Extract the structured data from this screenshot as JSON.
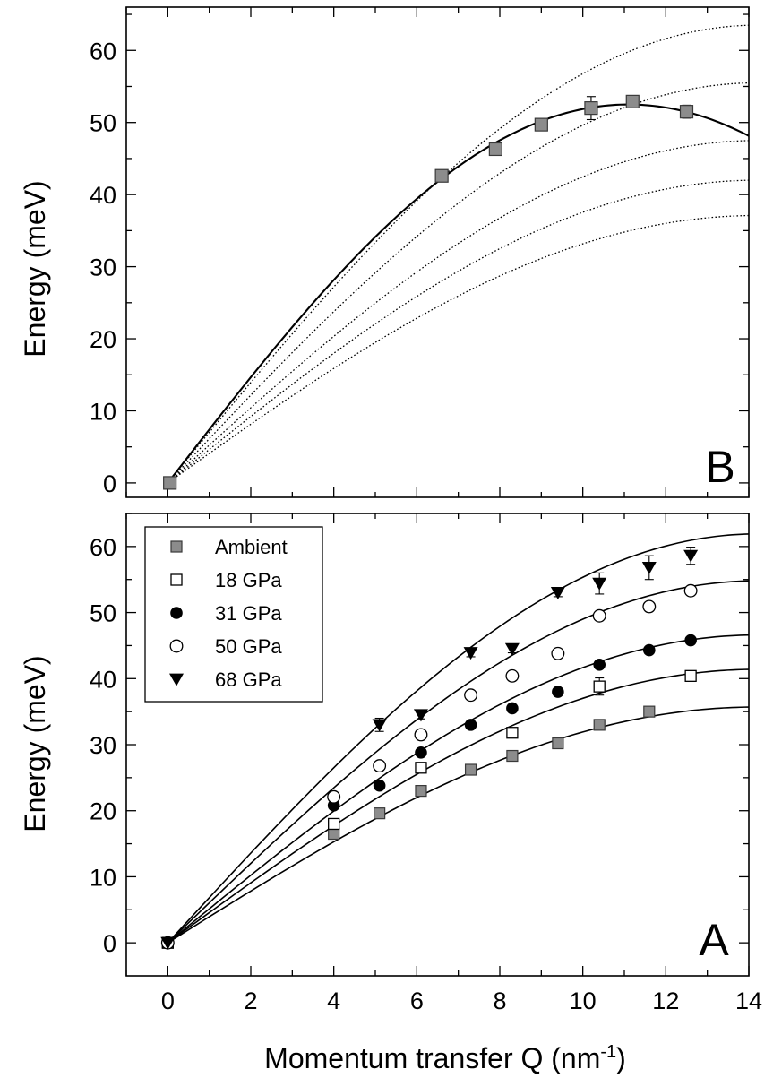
{
  "chart_data": [
    {
      "panel": "B",
      "type": "scatter",
      "panel_label": "B",
      "xlabel": "",
      "ylabel": "Energy (meV)",
      "xlim": [
        -1,
        14
      ],
      "ylim": [
        -2,
        66
      ],
      "y_ticks": [
        "0",
        "10",
        "20",
        "30",
        "40",
        "50",
        "60"
      ],
      "series": [
        {
          "marker": "square-gray",
          "points": [
            {
              "x": 0.05,
              "y": 0,
              "err": 0
            },
            {
              "x": 6.6,
              "y": 42.6,
              "err": 0.4
            },
            {
              "x": 7.9,
              "y": 46.3,
              "err": 0.5
            },
            {
              "x": 9.0,
              "y": 49.7,
              "err": 0.5
            },
            {
              "x": 10.2,
              "y": 52.0,
              "err": 1.6
            },
            {
              "x": 11.2,
              "y": 52.9,
              "err": 0.5
            },
            {
              "x": 12.5,
              "y": 51.5,
              "err": 0.9
            }
          ]
        }
      ],
      "curves": [
        {
          "style": "solid",
          "amplitude": 52.5,
          "qmax": 11.1
        },
        {
          "style": "dotted",
          "amplitude": 63.5,
          "qmax": 14.2
        },
        {
          "style": "dotted",
          "amplitude": 55.5,
          "qmax": 14.2
        },
        {
          "style": "dotted",
          "amplitude": 47.5,
          "qmax": 14.2
        },
        {
          "style": "dotted",
          "amplitude": 42.0,
          "qmax": 14.2
        },
        {
          "style": "dotted",
          "amplitude": 37.1,
          "qmax": 14.2
        }
      ]
    },
    {
      "panel": "A",
      "type": "scatter",
      "panel_label": "A",
      "xlabel": "Momentum transfer Q (nm",
      "xlabel_superscript": "-1",
      "xlabel_suffix": ")",
      "ylabel": "Energy (meV)",
      "xlim": [
        -1,
        14
      ],
      "ylim": [
        -5,
        65
      ],
      "x_ticks": [
        "0",
        "2",
        "4",
        "6",
        "8",
        "10",
        "12",
        "14"
      ],
      "y_ticks": [
        "0",
        "10",
        "20",
        "30",
        "40",
        "50",
        "60"
      ],
      "legend": {
        "position": "top-left"
      },
      "series": [
        {
          "name": "Ambient",
          "marker": "square-gray",
          "points": [
            {
              "x": 0,
              "y": 0,
              "err": 0
            },
            {
              "x": 4.0,
              "y": 16.5,
              "err": 0.6
            },
            {
              "x": 5.1,
              "y": 19.6,
              "err": 0.6
            },
            {
              "x": 6.1,
              "y": 23.0,
              "err": 0.6
            },
            {
              "x": 7.3,
              "y": 26.2,
              "err": 0.6
            },
            {
              "x": 8.3,
              "y": 28.3,
              "err": 0.6
            },
            {
              "x": 9.4,
              "y": 30.2,
              "err": 0.6
            },
            {
              "x": 10.4,
              "y": 33.0,
              "err": 0.6
            },
            {
              "x": 11.6,
              "y": 35.0,
              "err": 0.6
            }
          ],
          "fit": {
            "amplitude": 35.7,
            "qmax": 14.2
          }
        },
        {
          "name": "18 GPa",
          "marker": "square-open",
          "points": [
            {
              "x": 0,
              "y": 0,
              "err": 0
            },
            {
              "x": 4.0,
              "y": 18.0,
              "err": 0.6
            },
            {
              "x": 6.1,
              "y": 26.5,
              "err": 0.6
            },
            {
              "x": 8.3,
              "y": 31.8,
              "err": 0.6
            },
            {
              "x": 10.4,
              "y": 38.8,
              "err": 1.3
            },
            {
              "x": 12.6,
              "y": 40.4,
              "err": 0.6
            }
          ],
          "fit": {
            "amplitude": 41.4,
            "qmax": 14.2
          }
        },
        {
          "name": "31 GPa",
          "marker": "circle-filled",
          "points": [
            {
              "x": 0,
              "y": 0,
              "err": 0
            },
            {
              "x": 4.0,
              "y": 20.8,
              "err": 0.4
            },
            {
              "x": 5.1,
              "y": 23.8,
              "err": 0.4
            },
            {
              "x": 6.1,
              "y": 28.8,
              "err": 0.4
            },
            {
              "x": 7.3,
              "y": 33.0,
              "err": 0.4
            },
            {
              "x": 8.3,
              "y": 35.5,
              "err": 0.4
            },
            {
              "x": 9.4,
              "y": 38.0,
              "err": 0.4
            },
            {
              "x": 10.4,
              "y": 42.1,
              "err": 0.4
            },
            {
              "x": 11.6,
              "y": 44.3,
              "err": 0.4
            },
            {
              "x": 12.6,
              "y": 45.8,
              "err": 0.4
            }
          ],
          "fit": {
            "amplitude": 46.6,
            "qmax": 14.2
          }
        },
        {
          "name": "50 GPa",
          "marker": "circle-open",
          "points": [
            {
              "x": 0,
              "y": 0,
              "err": 0
            },
            {
              "x": 4.0,
              "y": 22.1,
              "err": 0.6
            },
            {
              "x": 5.1,
              "y": 26.8,
              "err": 0.6
            },
            {
              "x": 6.1,
              "y": 31.5,
              "err": 0.6
            },
            {
              "x": 7.3,
              "y": 37.5,
              "err": 0.6
            },
            {
              "x": 8.3,
              "y": 40.4,
              "err": 0.6
            },
            {
              "x": 9.4,
              "y": 43.8,
              "err": 0.6
            },
            {
              "x": 10.4,
              "y": 49.5,
              "err": 0.6
            },
            {
              "x": 11.6,
              "y": 50.9,
              "err": 0.6
            },
            {
              "x": 12.6,
              "y": 53.3,
              "err": 0.6
            }
          ],
          "fit": {
            "amplitude": 54.8,
            "qmax": 14.2
          }
        },
        {
          "name": "68 GPa",
          "marker": "triangle-down",
          "points": [
            {
              "x": 0,
              "y": 0,
              "err": 0
            },
            {
              "x": 5.1,
              "y": 33.0,
              "err": 1.0
            },
            {
              "x": 6.1,
              "y": 34.5,
              "err": 0.6
            },
            {
              "x": 7.3,
              "y": 43.9,
              "err": 0.6
            },
            {
              "x": 8.3,
              "y": 44.5,
              "err": 0.6
            },
            {
              "x": 9.4,
              "y": 53.0,
              "err": 0.6
            },
            {
              "x": 10.4,
              "y": 54.4,
              "err": 1.6
            },
            {
              "x": 11.6,
              "y": 56.8,
              "err": 1.8
            },
            {
              "x": 12.6,
              "y": 58.6,
              "err": 1.3
            }
          ],
          "fit": {
            "amplitude": 61.9,
            "qmax": 14.2
          }
        }
      ]
    }
  ]
}
